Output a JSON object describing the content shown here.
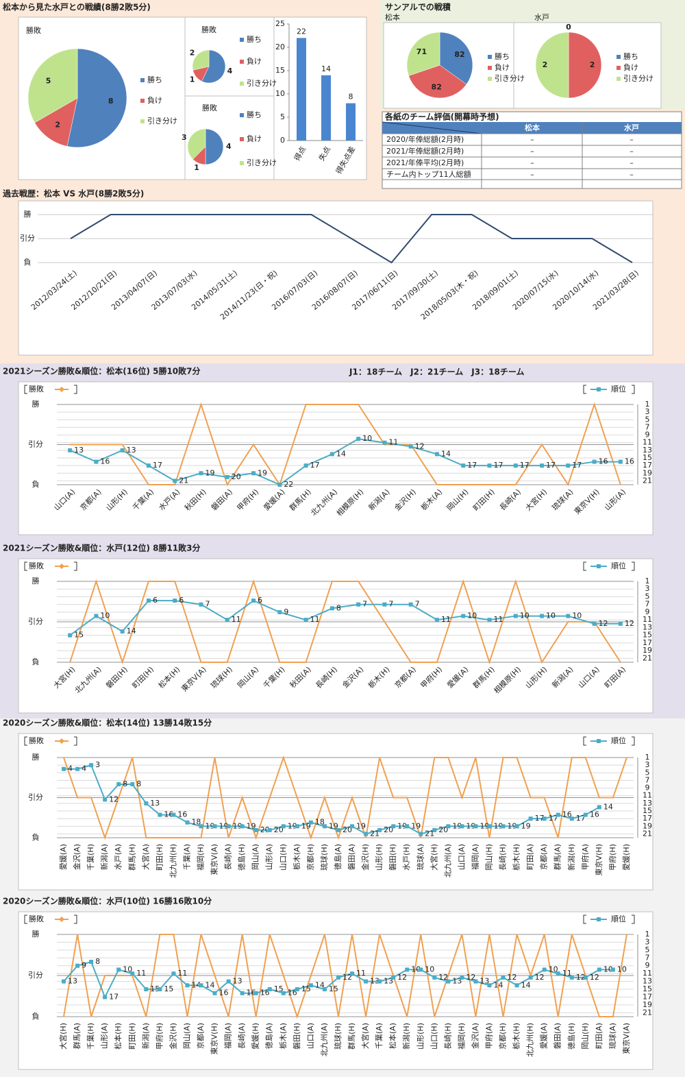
{
  "headings": {
    "record": "松本から見た水戸との戦績(8勝2敗5分)",
    "sanal": "サンアルでの戦積",
    "leagues": "J1：18チーム　J2：21チーム　J3：18チーム"
  },
  "table": {
    "title": "各紙のチーム評価(開幕時予想)",
    "columns": [
      "松本",
      "水戸"
    ],
    "rows": [
      {
        "label": "2020/年俸総額(2月時)",
        "values": [
          "–",
          "–"
        ]
      },
      {
        "label": "2021/年俸総額(2月時)",
        "values": [
          "–",
          "–"
        ]
      },
      {
        "label": "2021/年俸平均(2月時)",
        "values": [
          "–",
          "–"
        ]
      },
      {
        "label": "チーム内トップ11人総額",
        "values": [
          "–",
          "–"
        ]
      }
    ]
  },
  "chart_data": [
    {
      "type": "pie",
      "title": "勝敗",
      "categories": [
        "勝ち",
        "負け",
        "引き分け"
      ],
      "values": [
        8,
        2,
        5
      ],
      "colors": [
        "#4f81bd",
        "#e06060",
        "#bfe38c"
      ]
    },
    {
      "type": "pie",
      "title": "勝敗",
      "categories": [
        "勝ち",
        "負け",
        "引き分け"
      ],
      "values": [
        4,
        1,
        2
      ],
      "colors": [
        "#4f81bd",
        "#e06060",
        "#bfe38c"
      ]
    },
    {
      "type": "pie",
      "title": "勝敗",
      "categories": [
        "勝ち",
        "負け",
        "引き分け"
      ],
      "values": [
        4,
        1,
        3
      ],
      "colors": [
        "#4f81bd",
        "#e06060",
        "#bfe38c"
      ]
    },
    {
      "type": "bar",
      "categories": [
        "得点",
        "失点",
        "得失点差"
      ],
      "values": [
        22,
        14,
        8
      ],
      "color": "#4a86d0",
      "ylim": [
        0,
        25
      ],
      "yticks": [
        0,
        5,
        10,
        15,
        20,
        25
      ],
      "grid": false
    },
    {
      "type": "pie",
      "title": "松本",
      "categories": [
        "勝ち",
        "負け",
        "引き分け"
      ],
      "values": [
        82,
        82,
        71
      ],
      "colors": [
        "#4f81bd",
        "#e06060",
        "#bfe38c"
      ]
    },
    {
      "type": "pie",
      "title": "水戸",
      "categories": [
        "勝ち",
        "負け",
        "引き分け"
      ],
      "values": [
        0,
        2,
        2
      ],
      "colors": [
        "#4f81bd",
        "#e06060",
        "#bfe38c"
      ]
    },
    {
      "type": "line",
      "title": "過去戦歴：松本 VS 水戸(8勝2敗5分)",
      "color": "#2f4a6e",
      "categories": [
        "2012/03/24(土)",
        "2012/10/21(日)",
        "2013/04/07(日)",
        "2013/07/03(水)",
        "2014/05/31(土)",
        "2014/11/23(日・祝)",
        "2016/07/03(日)",
        "2016/08/07(日)",
        "2017/06/11(日)",
        "2017/09/30(土)",
        "2018/05/03(木・祝)",
        "2018/09/01(土)",
        "2020/07/15(水)",
        "2020/10/14(水)",
        "2021/03/28(日)"
      ],
      "values": [
        1,
        2,
        2,
        2,
        2,
        2,
        2,
        1,
        0,
        2,
        2,
        1,
        1,
        1,
        0
      ],
      "ylim": [
        0,
        2
      ],
      "yticks": [
        {
          "value": 0,
          "label": "負"
        },
        {
          "value": 1,
          "label": "引分"
        },
        {
          "value": 2,
          "label": "勝"
        }
      ],
      "grid": true
    },
    {
      "type": "combo",
      "title": "2021シーズン勝敗&順位：松本(16位) 5勝10敗7分",
      "categories": [
        "山口(A)",
        "京都(A)",
        "山形(H)",
        "千葉(A)",
        "水戸(A)",
        "秋田(H)",
        "磐田(A)",
        "甲府(H)",
        "愛媛(A)",
        "群馬(H)",
        "北九州(A)",
        "相模原(H)",
        "新潟(A)",
        "金沢(H)",
        "栃木(A)",
        "岡山(H)",
        "町田(H)",
        "長崎(A)",
        "大宮(H)",
        "琉球(A)",
        "東京V(H)",
        "山形(A)"
      ],
      "series": [
        {
          "name": "勝敗",
          "color": "#f0a050",
          "values": [
            1,
            1,
            1,
            0,
            0,
            2,
            0,
            1,
            0,
            2,
            2,
            2,
            1,
            1,
            0,
            0,
            0,
            0,
            1,
            0,
            2,
            0
          ]
        },
        {
          "name": "順位",
          "color": "#4bacc6",
          "axis": "y2",
          "values": [
            13,
            16,
            13,
            17,
            21,
            19,
            20,
            19,
            22,
            17,
            14,
            10,
            11,
            12,
            14,
            17,
            17,
            17,
            17,
            17,
            16,
            16
          ]
        }
      ],
      "ylim": [
        0,
        2
      ],
      "yticks": [
        {
          "value": 0,
          "label": "負"
        },
        {
          "value": 1,
          "label": "引分"
        },
        {
          "value": 2,
          "label": "勝"
        }
      ],
      "y2lim": [
        22,
        1
      ],
      "y2ticks": [
        1,
        3,
        5,
        7,
        9,
        11,
        13,
        15,
        17,
        19,
        21
      ],
      "grid": true
    },
    {
      "type": "combo",
      "title": "2021シーズン勝敗&順位：水戸(12位) 8勝11敗3分",
      "categories": [
        "大宮(H)",
        "北九州(A)",
        "磐田(H)",
        "町田(H)",
        "松本(H)",
        "東京V(A)",
        "琉球(H)",
        "岡山(A)",
        "千葉(H)",
        "秋田(A)",
        "長崎(H)",
        "金沢(A)",
        "栃木(H)",
        "京都(A)",
        "甲府(H)",
        "愛媛(A)",
        "群馬(H)",
        "相模原(H)",
        "山形(H)",
        "新潟(A)",
        "山口(A)",
        "町田(A)"
      ],
      "series": [
        {
          "name": "勝敗",
          "color": "#f0a050",
          "values": [
            0,
            2,
            0,
            2,
            2,
            0,
            0,
            2,
            0,
            0,
            2,
            2,
            1,
            0,
            0,
            2,
            0,
            2,
            0,
            1,
            1,
            0
          ]
        },
        {
          "name": "順位",
          "color": "#4bacc6",
          "axis": "y2",
          "values": [
            15,
            10,
            14,
            6,
            6,
            7,
            11,
            6,
            9,
            11,
            8,
            7,
            7,
            7,
            11,
            10,
            11,
            10,
            10,
            10,
            12,
            12
          ]
        }
      ],
      "ylim": [
        0,
        2
      ],
      "yticks": [
        {
          "value": 0,
          "label": "負"
        },
        {
          "value": 1,
          "label": "引分"
        },
        {
          "value": 2,
          "label": "勝"
        }
      ],
      "y2lim": [
        22,
        1
      ],
      "y2ticks": [
        1,
        3,
        5,
        7,
        9,
        11,
        13,
        15,
        17,
        19,
        21
      ],
      "grid": true
    },
    {
      "type": "combo",
      "title": "2020シーズン勝敗&順位：松本(14位) 13勝14敗15分",
      "categories": [
        "愛媛(A)",
        "金沢(A)",
        "千葉(H)",
        "新潟(A)",
        "水戸(A)",
        "群馬(H)",
        "大宮(A)",
        "町田(H)",
        "北九州(H)",
        "千葉(A)",
        "福岡(H)",
        "東京V(A)",
        "長崎(A)",
        "徳島(H)",
        "岡山(A)",
        "山形(A)",
        "山口(H)",
        "栃木(A)",
        "京都(H)",
        "琉球(H)",
        "徳島(A)",
        "磐田(A)",
        "金沢(H)",
        "山形(H)",
        "磐田(H)",
        "水戸(H)",
        "琉球(A)",
        "大宮(H)",
        "北九州(A)",
        "山口(A)",
        "福岡(A)",
        "岡山(H)",
        "長崎(H)",
        "栃木(H)",
        "町田(A)",
        "京都(A)",
        "群馬(A)",
        "新潟(H)",
        "甲府(A)",
        "東京V(H)",
        "甲府(H)",
        "愛媛(H)"
      ],
      "series": [
        {
          "name": "勝敗",
          "color": "#f0a050",
          "values": [
            2,
            1,
            1,
            0,
            1,
            2,
            0,
            0,
            0,
            0,
            0,
            2,
            0,
            1,
            0,
            1,
            2,
            1,
            0,
            1,
            0,
            1,
            0,
            2,
            1,
            1,
            0,
            2,
            2,
            1,
            2,
            0,
            2,
            2,
            1,
            1,
            0,
            2,
            2,
            1,
            1,
            2
          ]
        },
        {
          "name": "順位",
          "color": "#4bacc6",
          "axis": "y2",
          "values": [
            4,
            4,
            3,
            12,
            8,
            8,
            13,
            16,
            16,
            18,
            19,
            19,
            19,
            19,
            20,
            20,
            19,
            19,
            18,
            19,
            20,
            19,
            21,
            20,
            19,
            19,
            21,
            20,
            19,
            19,
            19,
            19,
            19,
            19,
            17,
            17,
            16,
            17,
            16,
            14,
            null,
            null
          ]
        }
      ],
      "ylim": [
        0,
        2
      ],
      "yticks": [
        {
          "value": 0,
          "label": "負"
        },
        {
          "value": 1,
          "label": "引分"
        },
        {
          "value": 2,
          "label": "勝"
        }
      ],
      "y2lim": [
        22,
        1
      ],
      "y2ticks": [
        1,
        3,
        5,
        7,
        9,
        11,
        13,
        15,
        17,
        19,
        21
      ],
      "grid": true
    },
    {
      "type": "combo",
      "title": "2020シーズン勝敗&順位：水戸(10位) 16勝16敗10分",
      "categories": [
        "大宮(H)",
        "群馬(A)",
        "千葉(H)",
        "山形(A)",
        "松本(H)",
        "町田(H)",
        "新潟(A)",
        "甲府(H)",
        "金沢(H)",
        "岡山(A)",
        "京都(A)",
        "東京V(H)",
        "福岡(A)",
        "長崎(A)",
        "愛媛(H)",
        "徳島(A)",
        "栃木(A)",
        "磐田(H)",
        "山口(A)",
        "北九州(A)",
        "琉球(H)",
        "群馬(H)",
        "大宮(A)",
        "千葉(A)",
        "松本(A)",
        "新潟(H)",
        "山形(H)",
        "山口(H)",
        "長崎(H)",
        "福岡(H)",
        "金沢(A)",
        "甲府(A)",
        "京都(H)",
        "栃木(H)",
        "北九州(H)",
        "愛媛(A)",
        "磐田(A)",
        "徳島(H)",
        "岡山(H)",
        "町田(A)",
        "琉球(A)",
        "東京V(A)"
      ],
      "series": [
        {
          "name": "勝敗",
          "color": "#f0a050",
          "values": [
            0,
            2,
            0,
            1,
            1,
            1,
            0,
            2,
            2,
            0,
            2,
            1,
            0,
            2,
            0,
            2,
            1,
            0,
            1,
            2,
            0,
            2,
            0,
            2,
            1,
            0,
            2,
            0,
            1,
            2,
            0,
            2,
            0,
            2,
            1,
            2,
            0,
            2,
            1,
            0,
            0,
            2
          ]
        },
        {
          "name": "順位",
          "color": "#4bacc6",
          "axis": "y2",
          "values": [
            13,
            9,
            8,
            17,
            10,
            11,
            15,
            15,
            11,
            14,
            14,
            16,
            13,
            16,
            16,
            15,
            16,
            15,
            14,
            15,
            12,
            11,
            13,
            13,
            12,
            10,
            10,
            12,
            13,
            12,
            13,
            14,
            12,
            14,
            12,
            10,
            11,
            12,
            12,
            10,
            10,
            null
          ]
        }
      ],
      "ylim": [
        0,
        2
      ],
      "yticks": [
        {
          "value": 0,
          "label": "負"
        },
        {
          "value": 1,
          "label": "引分"
        },
        {
          "value": 2,
          "label": "勝"
        }
      ],
      "y2lim": [
        22,
        1
      ],
      "y2ticks": [
        1,
        3,
        5,
        7,
        9,
        11,
        13,
        15,
        17,
        19,
        21
      ],
      "grid": true
    }
  ]
}
